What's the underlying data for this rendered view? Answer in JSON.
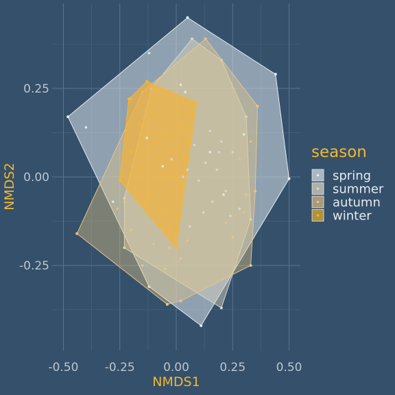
{
  "chart_data": {
    "type": "scatter",
    "xlabel": "NMDS1",
    "ylabel": "NMDS2",
    "xlim": [
      -0.55,
      0.55
    ],
    "ylim": [
      -0.49,
      0.49
    ],
    "x_ticks": [
      -0.5,
      -0.25,
      0.0,
      0.25,
      0.5
    ],
    "x_tick_labels": [
      "-0.50",
      "-0.25",
      "0.00",
      "0.25",
      "0.50"
    ],
    "y_ticks": [
      -0.25,
      0.0,
      0.25
    ],
    "y_tick_labels": [
      "-0.25",
      "0.00",
      "0.25"
    ],
    "grid": true,
    "legend": {
      "title": "season",
      "position": "right",
      "items": [
        {
          "label": "spring",
          "color": "#e6ebf0",
          "fill": "#a9b6c3"
        },
        {
          "label": "summer",
          "color": "#d6d6cc",
          "fill": "#aeb0a8"
        },
        {
          "label": "autumn",
          "color": "#e8c48a",
          "fill": "#a99a7c"
        },
        {
          "label": "winter",
          "color": "#f5b731",
          "fill": "#b0913d"
        }
      ]
    },
    "series": [
      {
        "name": "spring",
        "color": "#e6ebf0",
        "hull_fill": "rgba(210,220,230,0.58)",
        "hull": [
          [
            0.05,
            0.45
          ],
          [
            0.44,
            0.29
          ],
          [
            0.5,
            -0.005
          ],
          [
            0.11,
            -0.42
          ],
          [
            -0.12,
            -0.31
          ],
          [
            -0.48,
            0.17
          ]
        ],
        "points": [
          [
            -0.12,
            0.35
          ],
          [
            -0.4,
            0.14
          ],
          [
            0.04,
            0.24
          ],
          [
            0.02,
            0.26
          ],
          [
            -0.06,
            0.03
          ],
          [
            -0.13,
            0.11
          ],
          [
            0.15,
            0.07
          ],
          [
            0.3,
            0.12
          ],
          [
            0.21,
            -0.05
          ],
          [
            -0.28,
            -0.07
          ]
        ]
      },
      {
        "name": "summer",
        "color": "#d8d9cf",
        "hull_fill": "rgba(215,210,190,0.48)",
        "hull": [
          [
            0.07,
            0.39
          ],
          [
            0.2,
            0.33
          ],
          [
            0.31,
            0.17
          ],
          [
            0.33,
            -0.12
          ],
          [
            0.2,
            -0.37
          ],
          [
            -0.23,
            -0.2
          ],
          [
            -0.23,
            -0.06
          ],
          [
            -0.11,
            0.25
          ]
        ],
        "points": [
          [
            0.13,
            0.04
          ],
          [
            0.18,
            0.02
          ],
          [
            0.1,
            -0.01
          ],
          [
            0.22,
            -0.04
          ],
          [
            0.16,
            -0.07
          ],
          [
            0.08,
            0.09
          ],
          [
            0.05,
            0.02
          ],
          [
            0.12,
            -0.1
          ],
          [
            -0.02,
            0.05
          ],
          [
            0.25,
            0.07
          ],
          [
            0.2,
            0.1
          ],
          [
            0.15,
            0.13
          ],
          [
            0.24,
            -0.11
          ],
          [
            0.28,
            -0.09
          ],
          [
            0.06,
            -0.14
          ],
          [
            0.03,
            0.0
          ],
          [
            0.19,
            0.07
          ]
        ]
      },
      {
        "name": "autumn",
        "color": "#e8c48a",
        "hull_fill": "rgba(225,195,130,0.42)",
        "hull": [
          [
            0.13,
            0.39
          ],
          [
            0.36,
            0.2
          ],
          [
            0.35,
            -0.04
          ],
          [
            0.33,
            -0.25
          ],
          [
            0.02,
            -0.35
          ],
          [
            -0.04,
            -0.36
          ],
          [
            -0.44,
            -0.16
          ],
          [
            -0.15,
            0.24
          ]
        ],
        "points": [
          [
            -0.23,
            -0.07
          ],
          [
            -0.2,
            -0.15
          ],
          [
            -0.1,
            -0.19
          ],
          [
            -0.03,
            -0.2
          ],
          [
            0.02,
            -0.23
          ],
          [
            -0.26,
            -0.09
          ],
          [
            0.31,
            -0.05
          ],
          [
            0.3,
            -0.1
          ],
          [
            0.22,
            -0.13
          ],
          [
            0.25,
            -0.17
          ],
          [
            0.28,
            0.05
          ],
          [
            0.33,
            0.1
          ],
          [
            -0.15,
            -0.25
          ],
          [
            -0.05,
            -0.26
          ],
          [
            0.05,
            -0.18
          ]
        ]
      },
      {
        "name": "winter",
        "color": "#f5b731",
        "hull_fill": "rgba(245,178,55,0.68)",
        "hull": [
          [
            -0.13,
            0.27
          ],
          [
            0.09,
            0.21
          ],
          [
            0.0,
            -0.2
          ],
          [
            -0.25,
            -0.01
          ],
          [
            -0.21,
            0.22
          ]
        ],
        "points": [
          [
            -0.2,
            0.22
          ],
          [
            -0.16,
            0.15
          ],
          [
            -0.1,
            0.18
          ],
          [
            -0.05,
            0.12
          ],
          [
            -0.2,
            0.07
          ],
          [
            -0.15,
            0.02
          ],
          [
            -0.08,
            0.05
          ],
          [
            0.02,
            0.15
          ],
          [
            -0.12,
            -0.05
          ],
          [
            -0.05,
            -0.1
          ],
          [
            -0.02,
            0.0
          ],
          [
            -0.18,
            -0.03
          ],
          [
            0.06,
            0.1
          ],
          [
            0.04,
            0.05
          ],
          [
            -0.1,
            0.22
          ],
          [
            -0.03,
            -0.15
          ],
          [
            -0.22,
            0.13
          ],
          [
            -0.09,
            0.1
          ],
          [
            0.05,
            0.18
          ],
          [
            -0.14,
            -0.08
          ]
        ]
      }
    ]
  }
}
